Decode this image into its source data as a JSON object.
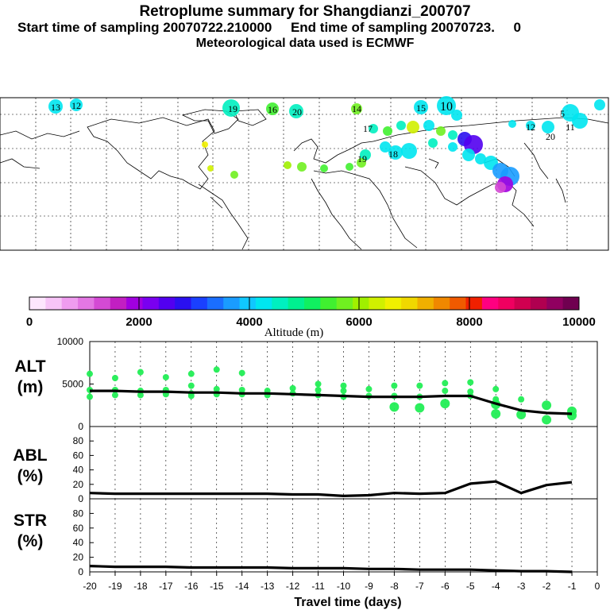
{
  "header": {
    "title": "Retroplume summary for Shangdianzi_200707",
    "sampling": "Start time of sampling 20070722.210000     End time of sampling 20070723.     0",
    "met": "Meteorological data used is ECMWF"
  },
  "colorbar": {
    "label": "Altitude (m)",
    "ticks": [
      "0",
      "2000",
      "4000",
      "6000",
      "8000",
      "10000"
    ],
    "colors": [
      "#fde6fd",
      "#f7c4f7",
      "#ef9cef",
      "#e377e3",
      "#d44ad4",
      "#c21fc2",
      "#a100e0",
      "#7a00f0",
      "#5200f0",
      "#2a10f0",
      "#1a40ff",
      "#1a6eff",
      "#1a9cff",
      "#10c8ff",
      "#00e6f0",
      "#00f0c0",
      "#00f090",
      "#10f060",
      "#40f030",
      "#70f020",
      "#a0f000",
      "#d0f000",
      "#f0f000",
      "#f0d800",
      "#f0b000",
      "#f08800",
      "#f05a00",
      "#f02000",
      "#ff0080",
      "#f00060",
      "#d00050",
      "#b00050",
      "#900060",
      "#700050"
    ]
  },
  "map": {
    "labels": [
      "13",
      "12",
      "19",
      "16",
      "20",
      "14",
      "15",
      "10",
      "5",
      "17",
      "18",
      "19",
      "20",
      "12",
      "11"
    ]
  },
  "chart_data": [
    {
      "type": "line",
      "name": "ALT",
      "ylabel": "ALT\n(m)",
      "ylabel_lines": [
        "ALT",
        "(m)"
      ],
      "ylim": [
        0,
        10000
      ],
      "yticks": [
        "0",
        "5000",
        "10000"
      ],
      "x": [
        -20,
        -19,
        -18,
        -17,
        -16,
        -15,
        -14,
        -13,
        -12,
        -11,
        -10,
        -9,
        -8,
        -7,
        -6,
        -5,
        -4,
        -3,
        -2,
        -1
      ],
      "values": [
        4200,
        4200,
        4100,
        4100,
        4000,
        4000,
        3900,
        3900,
        3800,
        3700,
        3600,
        3500,
        3500,
        3500,
        3600,
        3600,
        2700,
        1900,
        1600,
        1500
      ],
      "scatter": [
        [
          -20,
          6200
        ],
        [
          -20,
          4300
        ],
        [
          -20,
          3500
        ],
        [
          -19,
          5700
        ],
        [
          -19,
          4300
        ],
        [
          -19,
          3700
        ],
        [
          -18,
          6400
        ],
        [
          -18,
          4200
        ],
        [
          -18,
          3700
        ],
        [
          -17,
          5800
        ],
        [
          -17,
          4300
        ],
        [
          -17,
          3800
        ],
        [
          -16,
          6200
        ],
        [
          -16,
          4800
        ],
        [
          -16,
          3900
        ],
        [
          -16,
          3600
        ],
        [
          -15,
          6700
        ],
        [
          -15,
          4400
        ],
        [
          -15,
          3800
        ],
        [
          -14,
          6300
        ],
        [
          -14,
          4300
        ],
        [
          -14,
          3800
        ],
        [
          -13,
          4200
        ],
        [
          -13,
          3700
        ],
        [
          -12,
          4500
        ],
        [
          -12,
          3900
        ],
        [
          -11,
          5000
        ],
        [
          -11,
          4300
        ],
        [
          -11,
          3700
        ],
        [
          -10,
          4800
        ],
        [
          -10,
          4200
        ],
        [
          -10,
          3500
        ],
        [
          -9,
          4400
        ],
        [
          -9,
          3600
        ],
        [
          -8,
          4800
        ],
        [
          -8,
          3600
        ],
        [
          -8,
          2300
        ],
        [
          -7,
          4800
        ],
        [
          -7,
          3500
        ],
        [
          -7,
          2200
        ],
        [
          -6,
          5100
        ],
        [
          -6,
          4200
        ],
        [
          -6,
          2700
        ],
        [
          -5,
          5200
        ],
        [
          -5,
          4100
        ],
        [
          -5,
          3600
        ],
        [
          -4,
          4400
        ],
        [
          -4,
          3200
        ],
        [
          -4,
          2600
        ],
        [
          -4,
          1500
        ],
        [
          -3,
          3200
        ],
        [
          -3,
          1400
        ],
        [
          -2,
          2500
        ],
        [
          -2,
          800
        ],
        [
          -1,
          1800
        ],
        [
          -1,
          1300
        ]
      ]
    },
    {
      "type": "line",
      "name": "ABL",
      "ylabel_lines": [
        "ABL",
        "(%)"
      ],
      "ylim": [
        0,
        100
      ],
      "yticks": [
        "0",
        "20",
        "40",
        "60",
        "80"
      ],
      "x": [
        -20,
        -19,
        -18,
        -17,
        -16,
        -15,
        -14,
        -13,
        -12,
        -11,
        -10,
        -9,
        -8,
        -7,
        -6,
        -5,
        -4,
        -3,
        -2,
        -1
      ],
      "values": [
        8,
        7,
        7,
        7,
        7,
        7,
        7,
        7,
        6,
        6,
        4,
        5,
        8,
        7,
        8,
        21,
        24,
        8,
        19,
        23
      ]
    },
    {
      "type": "line",
      "name": "STR",
      "ylabel_lines": [
        "STR",
        "(%)"
      ],
      "ylim": [
        0,
        100
      ],
      "yticks": [
        "0",
        "20",
        "40",
        "60",
        "80"
      ],
      "x": [
        -20,
        -19,
        -18,
        -17,
        -16,
        -15,
        -14,
        -13,
        -12,
        -11,
        -10,
        -9,
        -8,
        -7,
        -6,
        -5,
        -4,
        -3,
        -2,
        -1
      ],
      "values": [
        8,
        7,
        7,
        7,
        6,
        6,
        6,
        6,
        5,
        5,
        5,
        4,
        4,
        3,
        3,
        3,
        2,
        1,
        1,
        0
      ]
    }
  ],
  "xaxis": {
    "label": "Travel time (days)",
    "ticks": [
      "-20",
      "-19",
      "-18",
      "-17",
      "-16",
      "-15",
      "-14",
      "-13",
      "-12",
      "-11",
      "-10",
      "-9",
      "-8",
      "-7",
      "-6",
      "-5",
      "-4",
      "-3",
      "-2",
      "-1",
      "0"
    ]
  }
}
